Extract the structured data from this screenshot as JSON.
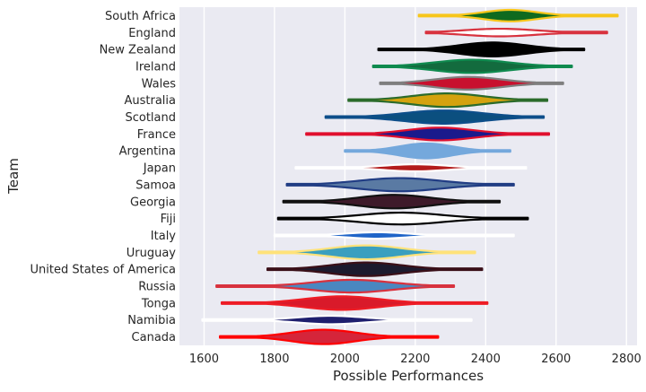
{
  "chart_data": {
    "type": "violin",
    "title": "",
    "xlabel": "Possible Performances",
    "ylabel": "Team",
    "xlim": [
      1530,
      2830
    ],
    "xticks": [
      1600,
      1800,
      2000,
      2200,
      2400,
      2600,
      2800
    ],
    "xtick_labels": [
      "1600",
      "1800",
      "2000",
      "2200",
      "2400",
      "2600",
      "2800"
    ],
    "grid": true,
    "background": "#eaeaf2",
    "series": [
      {
        "name": "South Africa",
        "min": 2210,
        "max": 2775,
        "center": 2470,
        "spread": 75,
        "width": 0.68,
        "outline": "#f7c61b",
        "fill": "#0f6a1f"
      },
      {
        "name": "England",
        "min": 2230,
        "max": 2745,
        "center": 2440,
        "spread": 100,
        "width": 0.45,
        "outline": "#d8323e",
        "fill": "#ffffff"
      },
      {
        "name": "New Zealand",
        "min": 2095,
        "max": 2680,
        "center": 2420,
        "spread": 95,
        "width": 0.82,
        "outline": "#000000",
        "fill": "#000000"
      },
      {
        "name": "Ireland",
        "min": 2080,
        "max": 2645,
        "center": 2360,
        "spread": 105,
        "width": 0.78,
        "outline": "#0f8a4f",
        "fill": "#136b3e"
      },
      {
        "name": "Wales",
        "min": 2100,
        "max": 2620,
        "center": 2350,
        "spread": 95,
        "width": 0.75,
        "outline": "#7f7f7f",
        "fill": "#c8102e"
      },
      {
        "name": "Australia",
        "min": 2010,
        "max": 2575,
        "center": 2290,
        "spread": 100,
        "width": 0.8,
        "outline": "#2b6b2b",
        "fill": "#d4a20f"
      },
      {
        "name": "Scotland",
        "min": 1945,
        "max": 2565,
        "center": 2280,
        "spread": 110,
        "width": 0.78,
        "outline": "#0d4e8a",
        "fill": "#0b4f7f"
      },
      {
        "name": "France",
        "min": 1890,
        "max": 2580,
        "center": 2270,
        "spread": 95,
        "width": 0.75,
        "outline": "#e0102e",
        "fill": "#1a1a8c"
      },
      {
        "name": "Argentina",
        "min": 2000,
        "max": 2470,
        "center": 2230,
        "spread": 75,
        "width": 0.88,
        "outline": "#74a8dc",
        "fill": "#74a8dc"
      },
      {
        "name": "Japan",
        "min": 1860,
        "max": 2515,
        "center": 2200,
        "spread": 90,
        "width": 0.42,
        "outline": "#ffffff",
        "fill": "#b31b1b"
      },
      {
        "name": "Samoa",
        "min": 1835,
        "max": 2480,
        "center": 2155,
        "spread": 115,
        "width": 0.78,
        "outline": "#213d84",
        "fill": "#5a7aa3"
      },
      {
        "name": "Georgia",
        "min": 1825,
        "max": 2440,
        "center": 2140,
        "spread": 100,
        "width": 0.8,
        "outline": "#111111",
        "fill": "#3e1a2a"
      },
      {
        "name": "Fiji",
        "min": 1810,
        "max": 2520,
        "center": 2160,
        "spread": 115,
        "width": 0.7,
        "outline": "#000000",
        "fill": "#ffffff"
      },
      {
        "name": "Italy",
        "min": 1800,
        "max": 2480,
        "center": 2090,
        "spread": 85,
        "width": 0.38,
        "outline": "#ffffff",
        "fill": "#1f64c8"
      },
      {
        "name": "Uruguay",
        "min": 1755,
        "max": 2370,
        "center": 2060,
        "spread": 100,
        "width": 0.82,
        "outline": "#ffe27a",
        "fill": "#3a9fbf"
      },
      {
        "name": "United States of America",
        "min": 1780,
        "max": 2390,
        "center": 2060,
        "spread": 100,
        "width": 0.8,
        "outline": "#3a0f18",
        "fill": "#1c1a2e"
      },
      {
        "name": "Russia",
        "min": 1635,
        "max": 2310,
        "center": 2020,
        "spread": 110,
        "width": 0.75,
        "outline": "#d8323e",
        "fill": "#4a87c0"
      },
      {
        "name": "Tonga",
        "min": 1650,
        "max": 2405,
        "center": 1990,
        "spread": 105,
        "width": 0.8,
        "outline": "#ee1c25",
        "fill": "#d91a2a"
      },
      {
        "name": "Namibia",
        "min": 1595,
        "max": 2360,
        "center": 1960,
        "spread": 95,
        "width": 0.5,
        "outline": "#ffffff",
        "fill": "#1e1e6e"
      },
      {
        "name": "Canada",
        "min": 1645,
        "max": 2265,
        "center": 1940,
        "spread": 90,
        "width": 0.85,
        "outline": "#ff0000",
        "fill": "#d5253a"
      }
    ]
  }
}
